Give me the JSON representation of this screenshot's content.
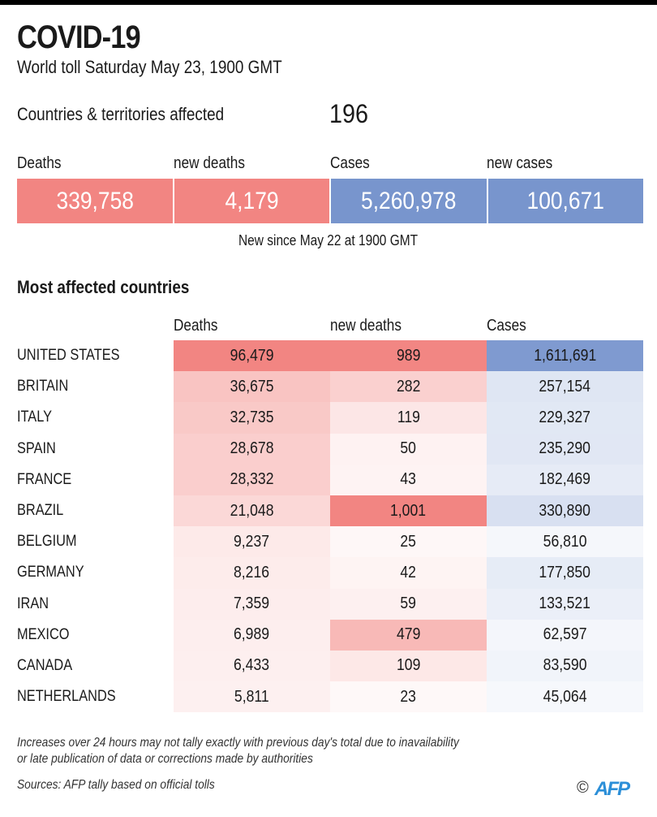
{
  "header": {
    "title": "COVID-19",
    "subtitle": "World toll Saturday May 23, 1900 GMT"
  },
  "countries_affected": {
    "label": "Countries & territories affected",
    "value": "196"
  },
  "summary": {
    "headers": [
      "Deaths",
      "new deaths",
      "Cases",
      "new cases"
    ],
    "values": [
      "339,758",
      "4,179",
      "5,260,978",
      "100,671"
    ],
    "note": "New since  May 22 at 1900 GMT"
  },
  "colors": {
    "deaths_strong": "#f28582",
    "cases_strong": "#7895cd",
    "text_dark": "#1a1a1a",
    "afp_blue": "#2c8fd8"
  },
  "most_affected": {
    "title": "Most affected countries",
    "headers": [
      "Deaths",
      "new deaths",
      "Cases"
    ],
    "rows": [
      {
        "country": "UNITED STATES",
        "deaths": "96,479",
        "new_deaths": "989",
        "cases": "1,611,691"
      },
      {
        "country": "BRITAIN",
        "deaths": "36,675",
        "new_deaths": "282",
        "cases": "257,154"
      },
      {
        "country": "ITALY",
        "deaths": "32,735",
        "new_deaths": "119",
        "cases": "229,327"
      },
      {
        "country": "SPAIN",
        "deaths": "28,678",
        "new_deaths": "50",
        "cases": "235,290"
      },
      {
        "country": "FRANCE",
        "deaths": "28,332",
        "new_deaths": "43",
        "cases": "182,469"
      },
      {
        "country": "BRAZIL",
        "deaths": "21,048",
        "new_deaths": "1,001",
        "cases": "330,890"
      },
      {
        "country": "BELGIUM",
        "deaths": "9,237",
        "new_deaths": "25",
        "cases": "56,810"
      },
      {
        "country": "GERMANY",
        "deaths": "8,216",
        "new_deaths": "42",
        "cases": "177,850"
      },
      {
        "country": "IRAN",
        "deaths": "7,359",
        "new_deaths": "59",
        "cases": "133,521"
      },
      {
        "country": "MEXICO",
        "deaths": "6,989",
        "new_deaths": "479",
        "cases": "62,597"
      },
      {
        "country": "CANADA",
        "deaths": "6,433",
        "new_deaths": "109",
        "cases": "83,590"
      },
      {
        "country": "NETHERLANDS",
        "deaths": "5,811",
        "new_deaths": "23",
        "cases": "45,064"
      }
    ]
  },
  "footer": {
    "note_line1": "Increases over 24 hours may not tally exactly with previous day's total due to inavailability",
    "note_line2": "or late publication of data or corrections made by authorities",
    "sources": "Sources: AFP tally based on official tolls",
    "copyright": "©",
    "logo": "AFP"
  }
}
